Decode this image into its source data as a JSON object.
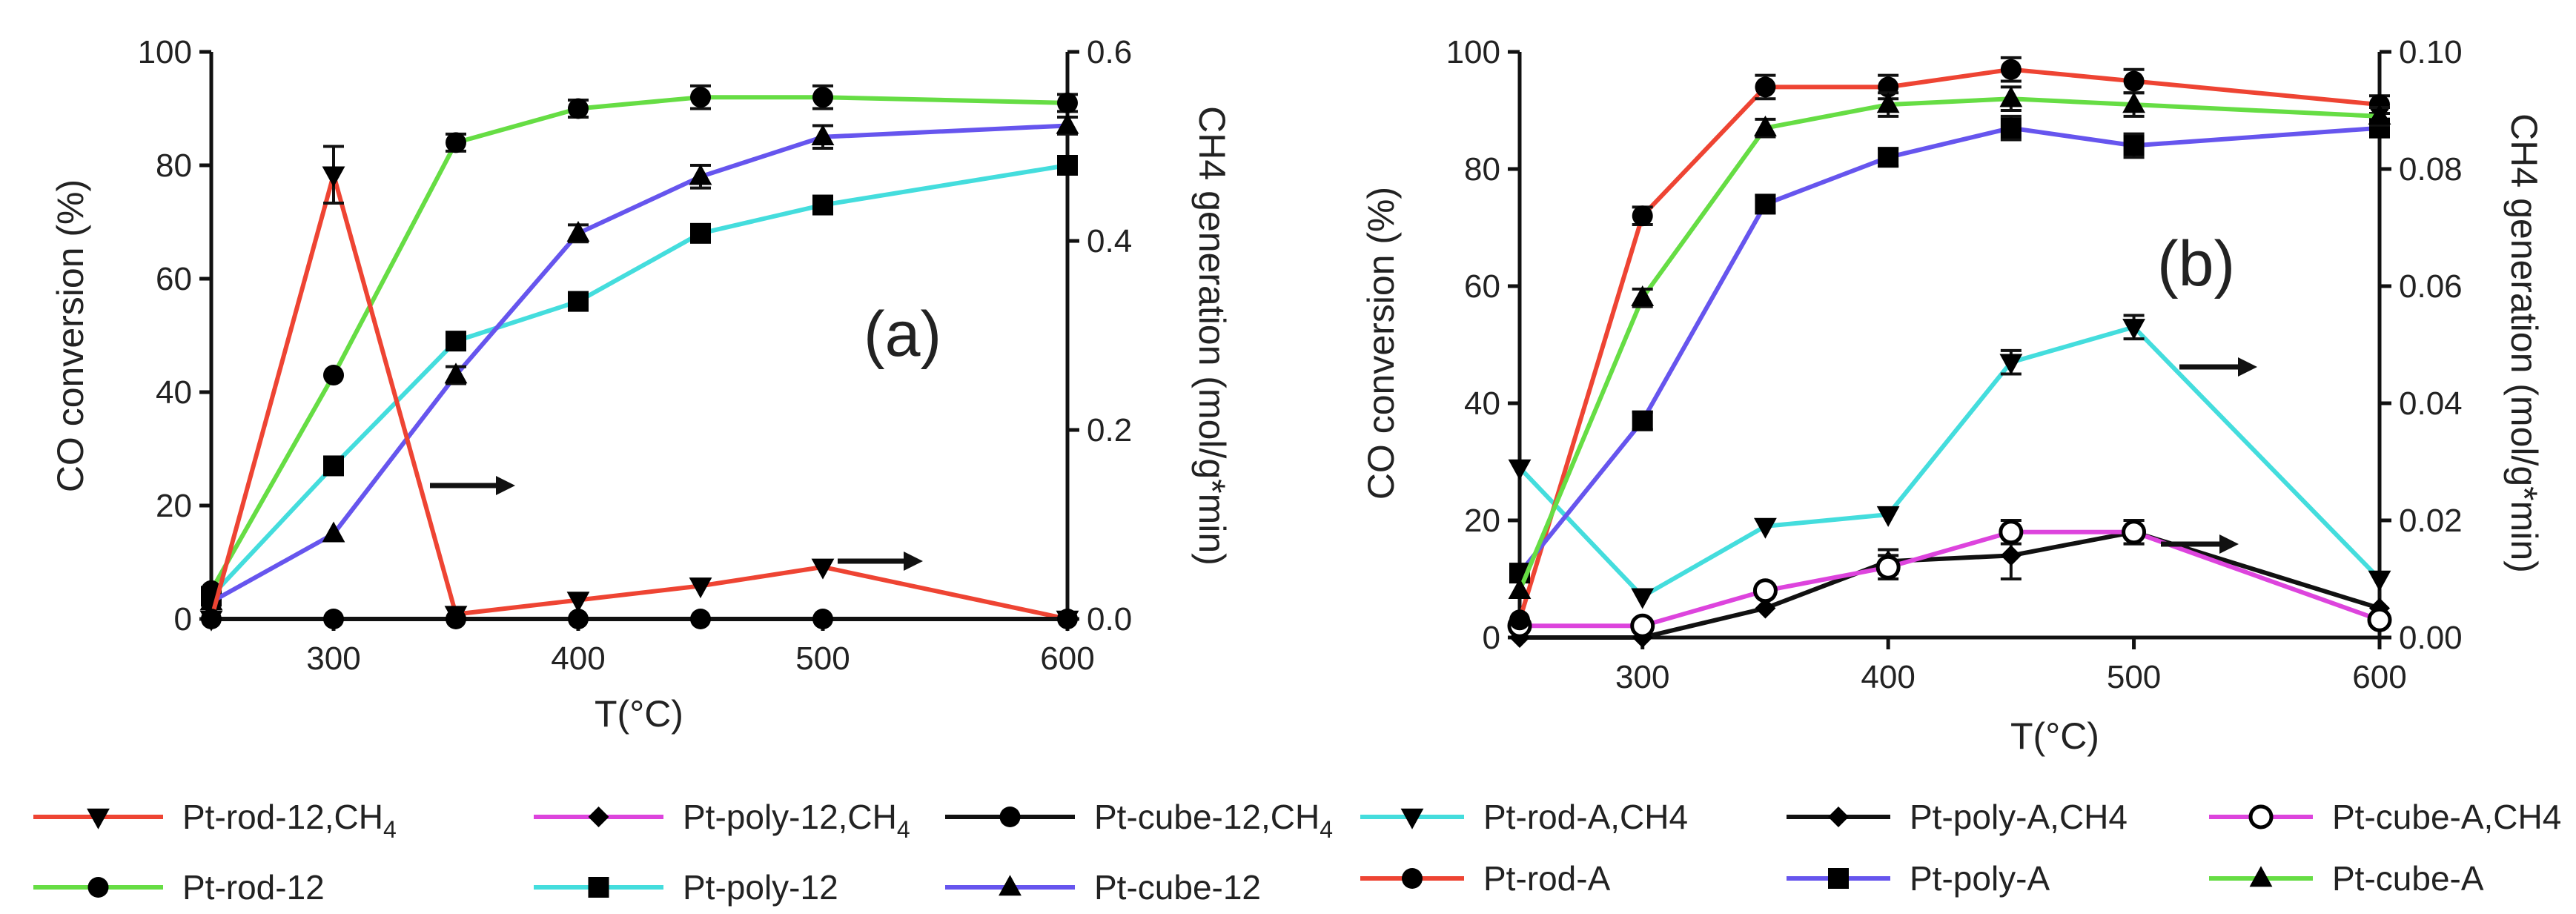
{
  "chart_data": [
    {
      "type": "line",
      "panel_label": "(a)",
      "xlabel": "T(°C)",
      "ylabel_left": "CO conversion (%)",
      "ylabel_right": "CH4 generation (mol/g*min)",
      "x_ticks": [
        "300",
        "400",
        "500",
        "600"
      ],
      "x_tick_values": [
        300,
        400,
        500,
        600
      ],
      "xlim": [
        250,
        600
      ],
      "y_left_ticks": [
        "0",
        "20",
        "40",
        "60",
        "80",
        "100"
      ],
      "y_left_tick_values": [
        0,
        20,
        40,
        60,
        80,
        100
      ],
      "ylim_left": [
        0,
        100
      ],
      "y_right_ticks": [
        "0.0",
        "0.2",
        "0.4",
        "0.6"
      ],
      "y_right_tick_values": [
        0,
        0.2,
        0.4,
        0.6
      ],
      "ylim_right": [
        0,
        0.6
      ],
      "series": [
        {
          "name": "Pt-rod-12",
          "legend_label": "Pt-rod-12",
          "axis": "left",
          "color": "#66dd44",
          "marker": "circle",
          "marker_color": "#000000",
          "x": [
            250,
            300,
            350,
            400,
            450,
            500,
            600
          ],
          "values": [
            5,
            43,
            84,
            90,
            92,
            92,
            91
          ],
          "errors": [
            0,
            0,
            1.5,
            1.5,
            2,
            2,
            1.5
          ]
        },
        {
          "name": "Pt-poly-12",
          "legend_label": "Pt-poly-12",
          "axis": "left",
          "color": "#44dddd",
          "marker": "square",
          "marker_color": "#000000",
          "x": [
            250,
            300,
            350,
            400,
            450,
            500,
            600
          ],
          "values": [
            4,
            27,
            49,
            56,
            68,
            73,
            80
          ],
          "errors": [
            0,
            0,
            1.5,
            1.5,
            1.5,
            1.5,
            1.5
          ]
        },
        {
          "name": "Pt-cube-12",
          "legend_label": "Pt-cube-12",
          "axis": "left",
          "color": "#6655ee",
          "marker": "triangle-up",
          "marker_color": "#000000",
          "x": [
            250,
            300,
            350,
            400,
            450,
            500,
            600
          ],
          "values": [
            3,
            15,
            43,
            68,
            78,
            85,
            87
          ],
          "errors": [
            0,
            0,
            1.5,
            1.5,
            2,
            2,
            1.5
          ]
        },
        {
          "name": "Pt-rod-12,CH4",
          "legend_label": "Pt-rod-12,CH",
          "legend_sub": "4",
          "axis": "right",
          "color": "#ee4433",
          "marker": "triangle-down",
          "marker_color": "#000000",
          "x": [
            250,
            300,
            350,
            400,
            450,
            500,
            600
          ],
          "values": [
            0.0,
            0.47,
            0.005,
            0.02,
            0.035,
            0.055,
            0.0
          ],
          "errors": [
            0,
            0.03,
            0,
            0,
            0,
            0,
            0
          ]
        },
        {
          "name": "Pt-poly-12,CH4",
          "legend_label": "Pt-poly-12,CH",
          "legend_sub": "4",
          "axis": "right",
          "color": "#dd44dd",
          "marker": "diamond",
          "marker_color": "#000000",
          "x": [
            250,
            300,
            350,
            400,
            450,
            500,
            600
          ],
          "values": [
            0,
            0,
            0,
            0,
            0,
            0,
            0
          ],
          "errors": [
            0,
            0,
            0,
            0,
            0,
            0,
            0
          ]
        },
        {
          "name": "Pt-cube-12,CH4",
          "legend_label": "Pt-cube-12,CH",
          "legend_sub": "4",
          "axis": "right",
          "color": "#111111",
          "marker": "circle",
          "marker_color": "#000000",
          "x": [
            250,
            300,
            350,
            400,
            450,
            500,
            600
          ],
          "values": [
            0,
            0,
            0,
            0,
            0,
            0,
            0
          ],
          "errors": [
            0,
            0,
            0,
            0,
            0,
            0,
            0
          ]
        }
      ],
      "annotations": [
        {
          "type": "arrow-right",
          "near": "Pt-poly-12 / Pt-cube-12 curves at 350 °C, pointing to right axis"
        },
        {
          "type": "arrow-right",
          "near": "Pt-rod-12,CH4 curve at 500 °C, pointing to right axis"
        }
      ]
    },
    {
      "type": "line",
      "panel_label": "(b)",
      "xlabel": "T(°C)",
      "ylabel_left": "CO conversion (%)",
      "ylabel_right": "CH4 generation (mol/g*min)",
      "x_ticks": [
        "300",
        "400",
        "500",
        "600"
      ],
      "x_tick_values": [
        300,
        400,
        500,
        600
      ],
      "xlim": [
        250,
        600
      ],
      "y_left_ticks": [
        "0",
        "20",
        "40",
        "60",
        "80",
        "100"
      ],
      "y_left_tick_values": [
        0,
        20,
        40,
        60,
        80,
        100
      ],
      "ylim_left": [
        0,
        100
      ],
      "y_right_ticks": [
        "0.00",
        "0.02",
        "0.04",
        "0.06",
        "0.08",
        "0.10"
      ],
      "y_right_tick_values": [
        0,
        0.02,
        0.04,
        0.06,
        0.08,
        0.1
      ],
      "ylim_right": [
        0,
        0.1
      ],
      "series": [
        {
          "name": "Pt-rod-A,CH4",
          "legend_label": "Pt-rod-A,CH4",
          "axis": "right",
          "color": "#44dddd",
          "marker": "triangle-down",
          "marker_color": "#000000",
          "x": [
            250,
            300,
            350,
            400,
            450,
            500,
            600
          ],
          "values": [
            0.029,
            0.007,
            0.019,
            0.021,
            0.047,
            0.053,
            0.01
          ],
          "errors": [
            0,
            0,
            0,
            0,
            0.002,
            0.002,
            0
          ]
        },
        {
          "name": "Pt-poly-A,CH4",
          "legend_label": "Pt-poly-A,CH4",
          "axis": "right",
          "color": "#111111",
          "marker": "diamond",
          "marker_color": "#000000",
          "x": [
            250,
            300,
            350,
            400,
            450,
            500,
            600
          ],
          "values": [
            0.0,
            0.0,
            0.005,
            0.013,
            0.014,
            0.018,
            0.005
          ],
          "errors": [
            0,
            0,
            0,
            0.002,
            0.004,
            0.002,
            0
          ]
        },
        {
          "name": "Pt-cube-A,CH4",
          "legend_label": "Pt-cube-A,CH4",
          "axis": "right",
          "color": "#dd44dd",
          "marker": "circle-open",
          "marker_color": "#000000",
          "x": [
            250,
            300,
            350,
            400,
            450,
            500,
            600
          ],
          "values": [
            0.002,
            0.002,
            0.008,
            0.012,
            0.018,
            0.018,
            0.003
          ],
          "errors": [
            0,
            0,
            0,
            0.002,
            0.002,
            0.002,
            0
          ]
        },
        {
          "name": "Pt-rod-A",
          "legend_label": "Pt-rod-A",
          "axis": "left",
          "color": "#ee4433",
          "marker": "circle",
          "marker_color": "#000000",
          "x": [
            250,
            300,
            350,
            400,
            450,
            500,
            600
          ],
          "values": [
            3,
            72,
            94,
            94,
            97,
            95,
            91
          ],
          "errors": [
            0,
            1.5,
            2,
            2,
            2,
            2,
            1.5
          ]
        },
        {
          "name": "Pt-poly-A",
          "legend_label": "Pt-poly-A",
          "axis": "left",
          "color": "#6655ee",
          "marker": "square",
          "marker_color": "#000000",
          "x": [
            250,
            300,
            350,
            400,
            450,
            500,
            600
          ],
          "values": [
            11,
            37,
            74,
            82,
            87,
            84,
            87
          ],
          "errors": [
            0,
            1.5,
            1.5,
            1.5,
            2,
            2,
            1.5
          ]
        },
        {
          "name": "Pt-cube-A",
          "legend_label": "Pt-cube-A",
          "axis": "left",
          "color": "#66dd44",
          "marker": "triangle-up",
          "marker_color": "#000000",
          "x": [
            250,
            300,
            350,
            400,
            450,
            500,
            600
          ],
          "values": [
            8,
            58,
            87,
            91,
            92,
            91,
            89
          ],
          "errors": [
            0,
            1.5,
            1.5,
            2,
            2,
            2,
            1.5
          ]
        }
      ],
      "annotations": [
        {
          "type": "arrow-right",
          "near": "Pt-rod-A,CH4 curve at 500 °C, pointing to right axis"
        },
        {
          "type": "arrow-right",
          "near": "Pt-poly-A / Pt-cube-A,CH4 curves at 500 °C, pointing to right axis"
        }
      ]
    }
  ]
}
